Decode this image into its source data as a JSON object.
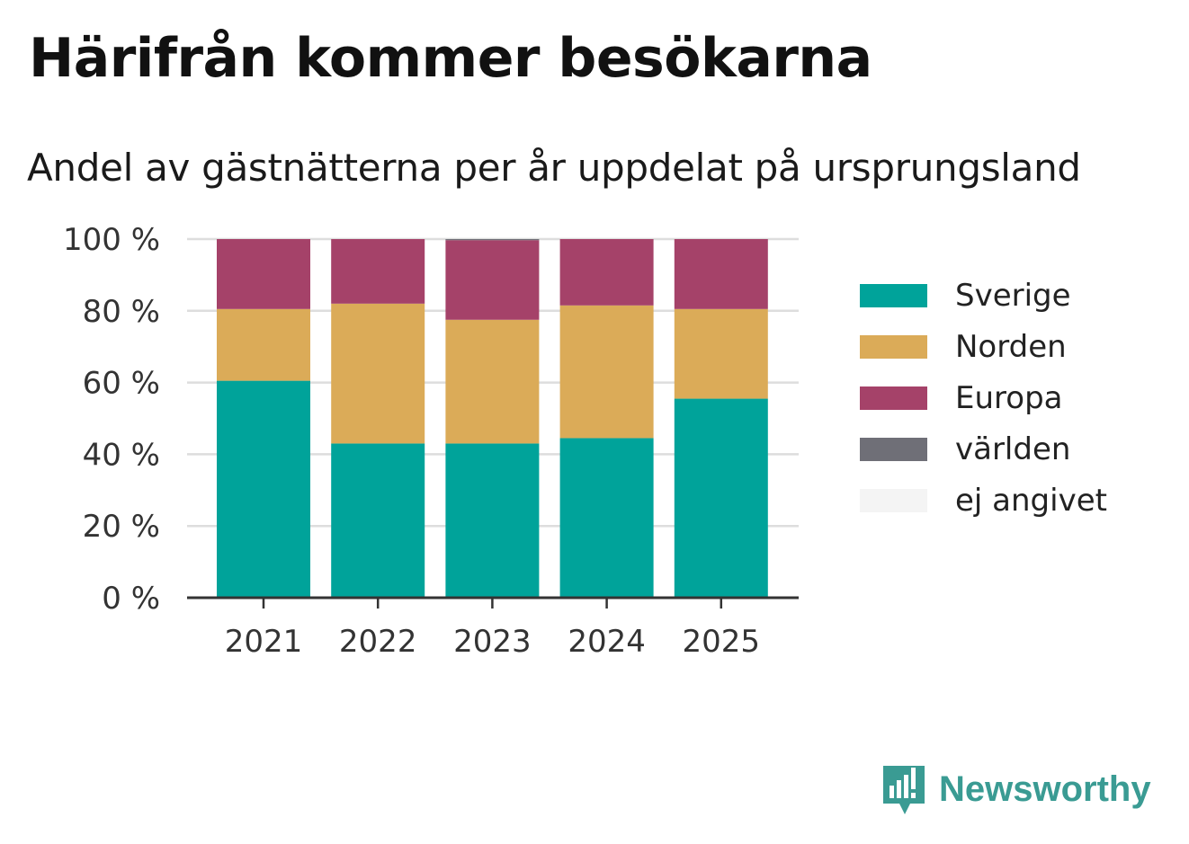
{
  "title": "Härifrån kommer besökarna",
  "subtitle": "Andel av gästnätterna per år uppdelat på ursprungsland",
  "brand": {
    "name": "Newsworthy",
    "icon": "newsworthy-logo-icon",
    "color": "#3a9b93"
  },
  "chart_data": {
    "type": "bar",
    "stacked": true,
    "categories": [
      "2021",
      "2022",
      "2023",
      "2024",
      "2025"
    ],
    "series": [
      {
        "name": "Sverige",
        "color": "#00a39a",
        "values": [
          60.5,
          43.0,
          43.0,
          44.5,
          55.5
        ]
      },
      {
        "name": "Norden",
        "color": "#dbab58",
        "values": [
          20.0,
          39.0,
          34.5,
          37.0,
          25.0
        ]
      },
      {
        "name": "Europa",
        "color": "#a54269",
        "values": [
          19.5,
          18.0,
          22.2,
          18.5,
          19.5
        ]
      },
      {
        "name": "världen",
        "color": "#6f6f77",
        "values": [
          0,
          0,
          0.3,
          0,
          0
        ]
      },
      {
        "name": "ej angivet",
        "color": "#f4f4f4",
        "values": [
          0,
          0,
          0,
          0,
          0
        ]
      }
    ],
    "y_ticks": [
      "0 %",
      "20 %",
      "40 %",
      "60 %",
      "80 %",
      "100 %"
    ],
    "ylim": [
      0,
      100
    ],
    "grid": true,
    "legend_position": "right"
  }
}
